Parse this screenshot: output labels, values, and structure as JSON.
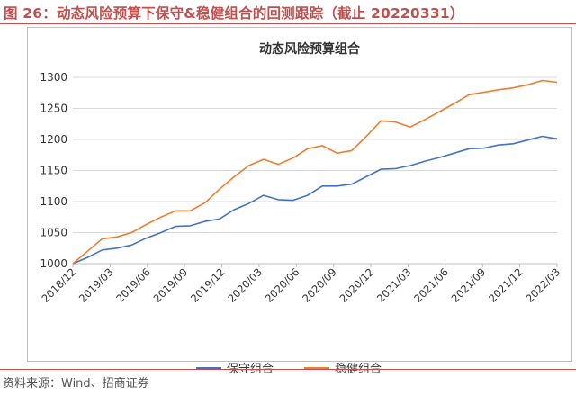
{
  "figure": {
    "title": "图 26：动态风险预算下保守&稳健组合的回测跟踪（截止 20220331）",
    "source": "资料来源：Wind、招商证券"
  },
  "chart_data": {
    "type": "line",
    "title": "动态风险预算组合",
    "xlabel": "",
    "ylabel": "",
    "ylim": [
      1000,
      1300
    ],
    "yticks": [
      1000,
      1050,
      1100,
      1150,
      1200,
      1250,
      1300
    ],
    "xticks": [
      "2018/12",
      "2019/03",
      "2019/06",
      "2019/09",
      "2019/12",
      "2020/03",
      "2020/06",
      "2020/09",
      "2020/12",
      "2021/03",
      "2021/06",
      "2021/09",
      "2021/12",
      "2022/03"
    ],
    "grid": "horizontal",
    "legend_position": "bottom",
    "series": [
      {
        "name": "保守组合",
        "color": "#4472C4",
        "values": [
          1000,
          1010,
          1022,
          1025,
          1030,
          1041,
          1050,
          1060,
          1061,
          1068,
          1072,
          1087,
          1097,
          1110,
          1103,
          1102,
          1110,
          1125,
          1125,
          1128,
          1140,
          1152,
          1153,
          1158,
          1165,
          1171,
          1178,
          1185,
          1186,
          1191,
          1193,
          1199,
          1205,
          1201
        ]
      },
      {
        "name": "稳健组合",
        "color": "#ED7D31",
        "values": [
          1000,
          1020,
          1040,
          1043,
          1050,
          1063,
          1075,
          1085,
          1085,
          1098,
          1120,
          1140,
          1158,
          1168,
          1160,
          1170,
          1185,
          1190,
          1178,
          1182,
          1205,
          1230,
          1228,
          1220,
          1232,
          1245,
          1258,
          1272,
          1276,
          1280,
          1283,
          1288,
          1295,
          1292
        ]
      }
    ]
  }
}
